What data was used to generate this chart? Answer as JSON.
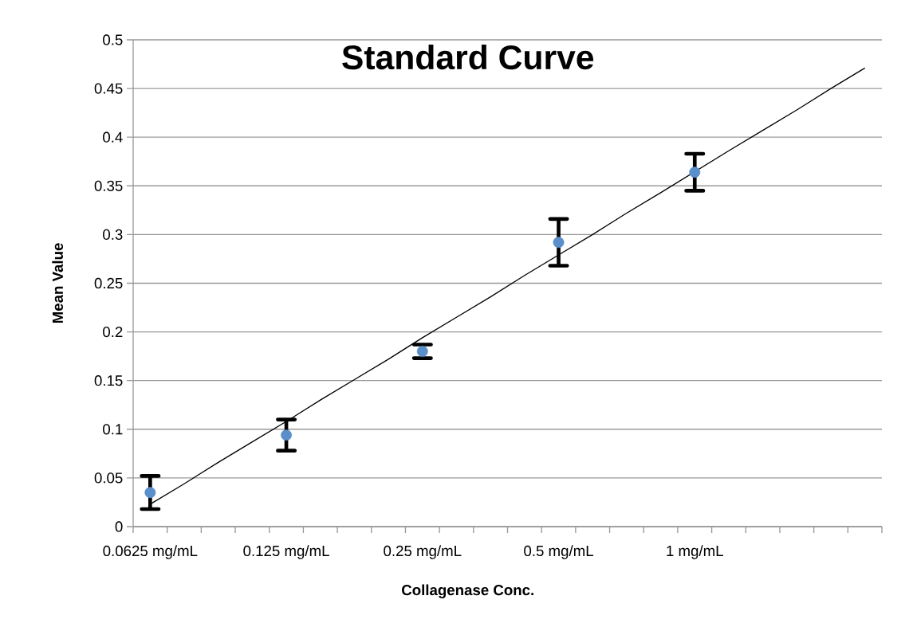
{
  "chart_data": {
    "type": "scatter",
    "title": "Standard Curve",
    "xlabel": "Collagenase Conc.",
    "ylabel": "Mean Value",
    "categories": [
      "0.0625 mg/mL",
      null,
      null,
      null,
      "0.125 mg/mL",
      null,
      null,
      null,
      "0.25 mg/mL",
      null,
      null,
      null,
      "0.5 mg/mL",
      null,
      null,
      null,
      "1 mg/mL",
      null,
      null,
      null,
      null,
      null
    ],
    "ylim": [
      0,
      0.5
    ],
    "yticks": [
      0,
      0.05,
      0.1,
      0.15,
      0.2,
      0.25,
      0.3,
      0.35,
      0.4,
      0.45,
      0.5
    ],
    "grid": "y",
    "marker": "circle",
    "series": [
      {
        "color": "#5b8fc9",
        "values": [
          0.035,
          null,
          null,
          null,
          0.094,
          null,
          null,
          null,
          0.18,
          null,
          null,
          null,
          0.292,
          null,
          null,
          null,
          0.364,
          null,
          null,
          null,
          null,
          null
        ],
        "errors": [
          0.017,
          null,
          null,
          null,
          0.016,
          null,
          null,
          null,
          0.007,
          null,
          null,
          null,
          0.024,
          null,
          null,
          null,
          0.019,
          null,
          null,
          null,
          null,
          null
        ]
      },
      {
        "type": "line",
        "color": "#000000",
        "marker": "none",
        "values": [
          0.023,
          0.044,
          0.066,
          0.087,
          0.108,
          0.13,
          0.151,
          0.172,
          0.194,
          0.215,
          0.236,
          0.258,
          0.279,
          0.3,
          0.322,
          0.343,
          null,
          0.386,
          0.407,
          0.428,
          0.45,
          0.471
        ]
      }
    ]
  }
}
